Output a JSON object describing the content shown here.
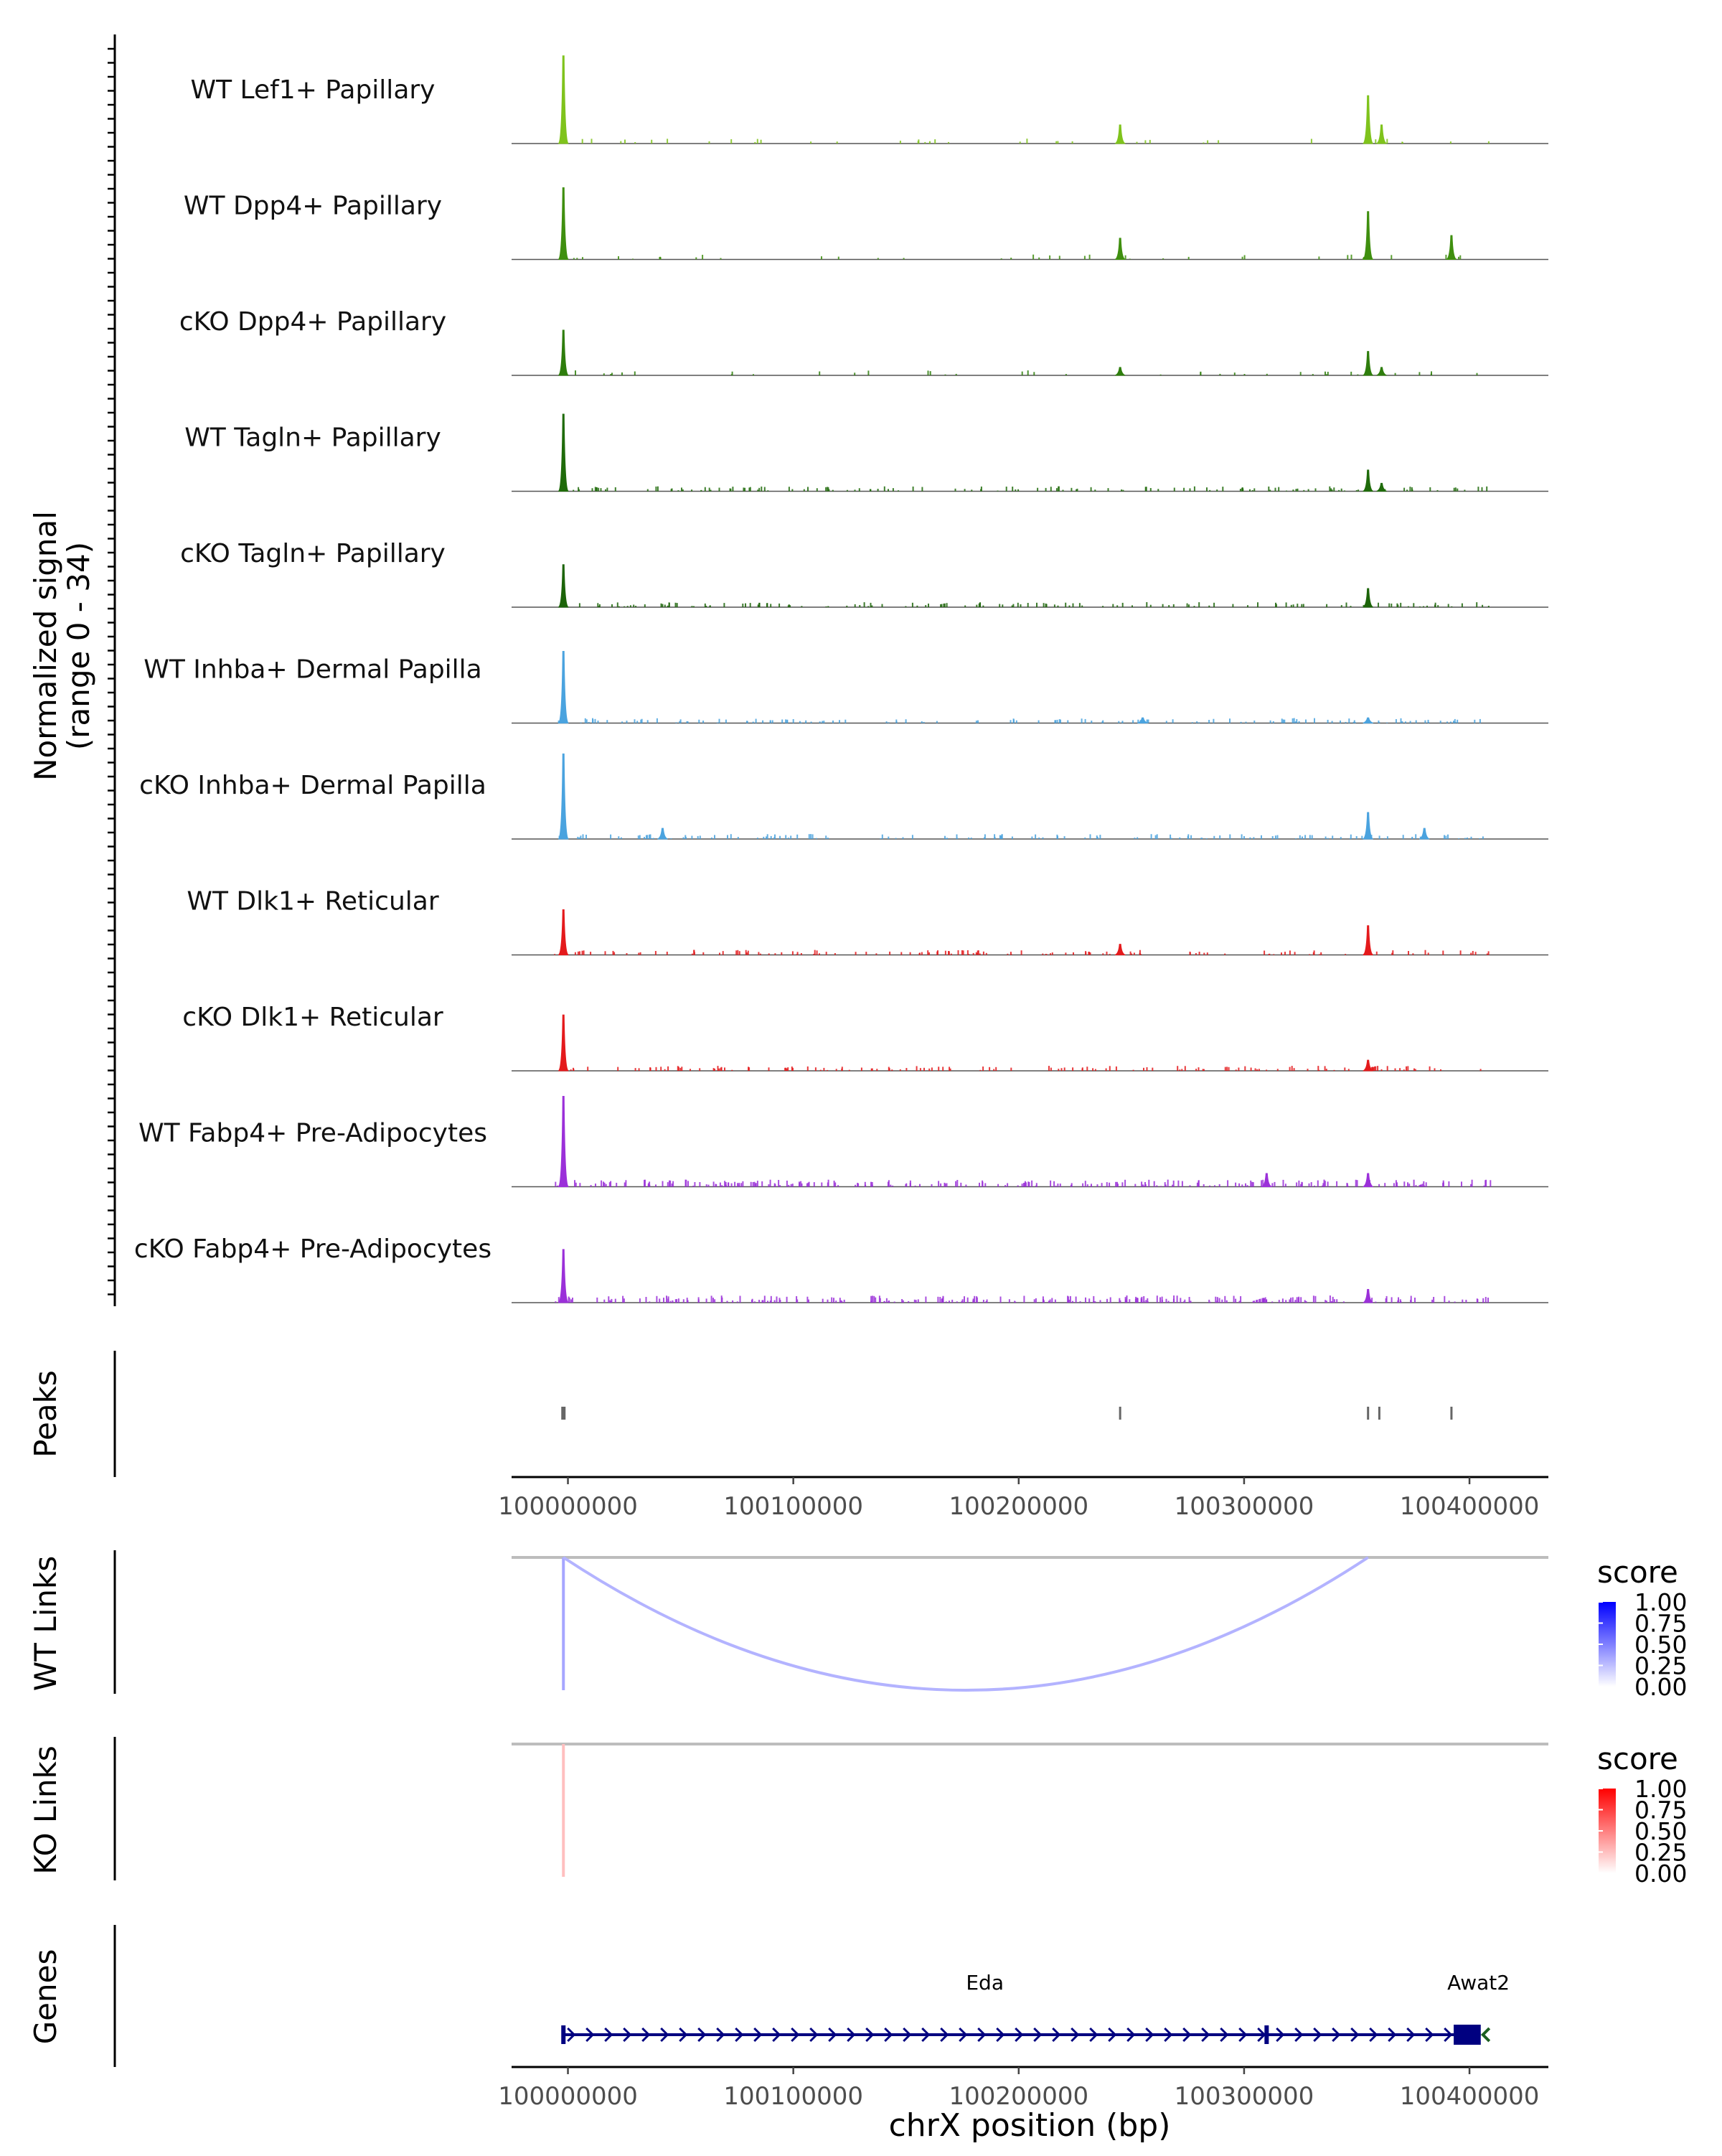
{
  "chart_data": {
    "type": "coverage-track",
    "genome_region": {
      "chromosome": "chrX",
      "start": 99975000,
      "end": 100435000
    },
    "coverage": {
      "ylabel_line1": "Normalized signal",
      "ylabel_line2": "(range 0 - 34)",
      "range": [
        0,
        34
      ],
      "tracks": [
        {
          "name": "WT Lef1+ Papillary",
          "color": "#7FC31C",
          "peaks": [
            [
              99998000,
              33
            ],
            [
              100245000,
              7
            ],
            [
              100355000,
              18
            ],
            [
              100361000,
              7
            ]
          ]
        },
        {
          "name": "WT Dpp4+ Papillary",
          "color": "#3F8F0F",
          "peaks": [
            [
              99998000,
              27
            ],
            [
              100245000,
              8
            ],
            [
              100355000,
              18
            ],
            [
              100392000,
              9
            ]
          ]
        },
        {
          "name": "cKO Dpp4+ Papillary",
          "color": "#2E7D0C",
          "peaks": [
            [
              99998000,
              17
            ],
            [
              100245000,
              3
            ],
            [
              100355000,
              9
            ],
            [
              100361000,
              3
            ]
          ]
        },
        {
          "name": "WT Tagln+ Papillary",
          "color": "#1F6B0A",
          "peaks": [
            [
              99998000,
              29
            ],
            [
              100355000,
              8
            ],
            [
              100361000,
              3
            ]
          ]
        },
        {
          "name": "cKO Tagln+ Papillary",
          "color": "#1C6409",
          "peaks": [
            [
              99998000,
              16
            ],
            [
              100355000,
              7
            ]
          ]
        },
        {
          "name": "WT Inhba+ Dermal Papilla",
          "color": "#4AA3DF",
          "peaks": [
            [
              99998000,
              27
            ],
            [
              100255000,
              2
            ],
            [
              100355000,
              2
            ]
          ]
        },
        {
          "name": "cKO Inhba+ Dermal Papilla",
          "color": "#4AA3DF",
          "peaks": [
            [
              99998000,
              32
            ],
            [
              100042000,
              4
            ],
            [
              100355000,
              10
            ],
            [
              100380000,
              4
            ]
          ]
        },
        {
          "name": "WT Dlk1+ Reticular",
          "color": "#E41A1C",
          "peaks": [
            [
              99998000,
              17
            ],
            [
              100245000,
              4
            ],
            [
              100355000,
              11
            ]
          ]
        },
        {
          "name": "cKO Dlk1+ Reticular",
          "color": "#E41A1C",
          "peaks": [
            [
              99998000,
              21
            ],
            [
              100355000,
              4
            ]
          ]
        },
        {
          "name": "WT Fabp4+ Pre-Adipocytes",
          "color": "#9B30D9",
          "peaks": [
            [
              99998000,
              34
            ],
            [
              100310000,
              5
            ],
            [
              100355000,
              5
            ]
          ]
        },
        {
          "name": "cKO Fabp4+ Pre-Adipocytes",
          "color": "#9B30D9",
          "peaks": [
            [
              99998000,
              20
            ],
            [
              100355000,
              5
            ]
          ]
        }
      ]
    },
    "peaks_track": {
      "label": "Peaks",
      "positions": [
        99998000,
        100245000,
        100355000,
        100360000,
        100392000
      ]
    },
    "axis_ticks": [
      100000000,
      100100000,
      100200000,
      100300000,
      100400000
    ],
    "axis_tick_labels": [
      "100000000",
      "100100000",
      "100200000",
      "100300000",
      "100400000"
    ],
    "wt_links": {
      "label": "WT Links",
      "links": [
        {
          "start": 99998000,
          "end": 99998000,
          "score": 0.35
        },
        {
          "start": 99998000,
          "end": 100355000,
          "score": 0.3
        }
      ]
    },
    "ko_links": {
      "label": "KO Links",
      "links": [
        {
          "start": 99998000,
          "end": 99998000,
          "score": 0.25
        }
      ]
    },
    "legend_wt": {
      "title": "score",
      "ticks": [
        "1.00",
        "0.75",
        "0.50",
        "0.25",
        "0.00"
      ],
      "low_color": "#FFFFFF",
      "high_color": "#0000FF"
    },
    "legend_ko": {
      "title": "score",
      "ticks": [
        "1.00",
        "0.75",
        "0.50",
        "0.25",
        "0.00"
      ],
      "low_color": "#FFFFFF",
      "high_color": "#FF0000"
    },
    "genes": {
      "label": "Genes",
      "items": [
        {
          "name": "Eda",
          "start": 99998000,
          "end": 100400000,
          "strand": "+",
          "color": "#000080"
        },
        {
          "name": "Awat2",
          "start": 100393000,
          "end": 100405000,
          "strand": "-",
          "color": "#1B5E20"
        }
      ]
    },
    "xlabel": "chrX position (bp)"
  }
}
